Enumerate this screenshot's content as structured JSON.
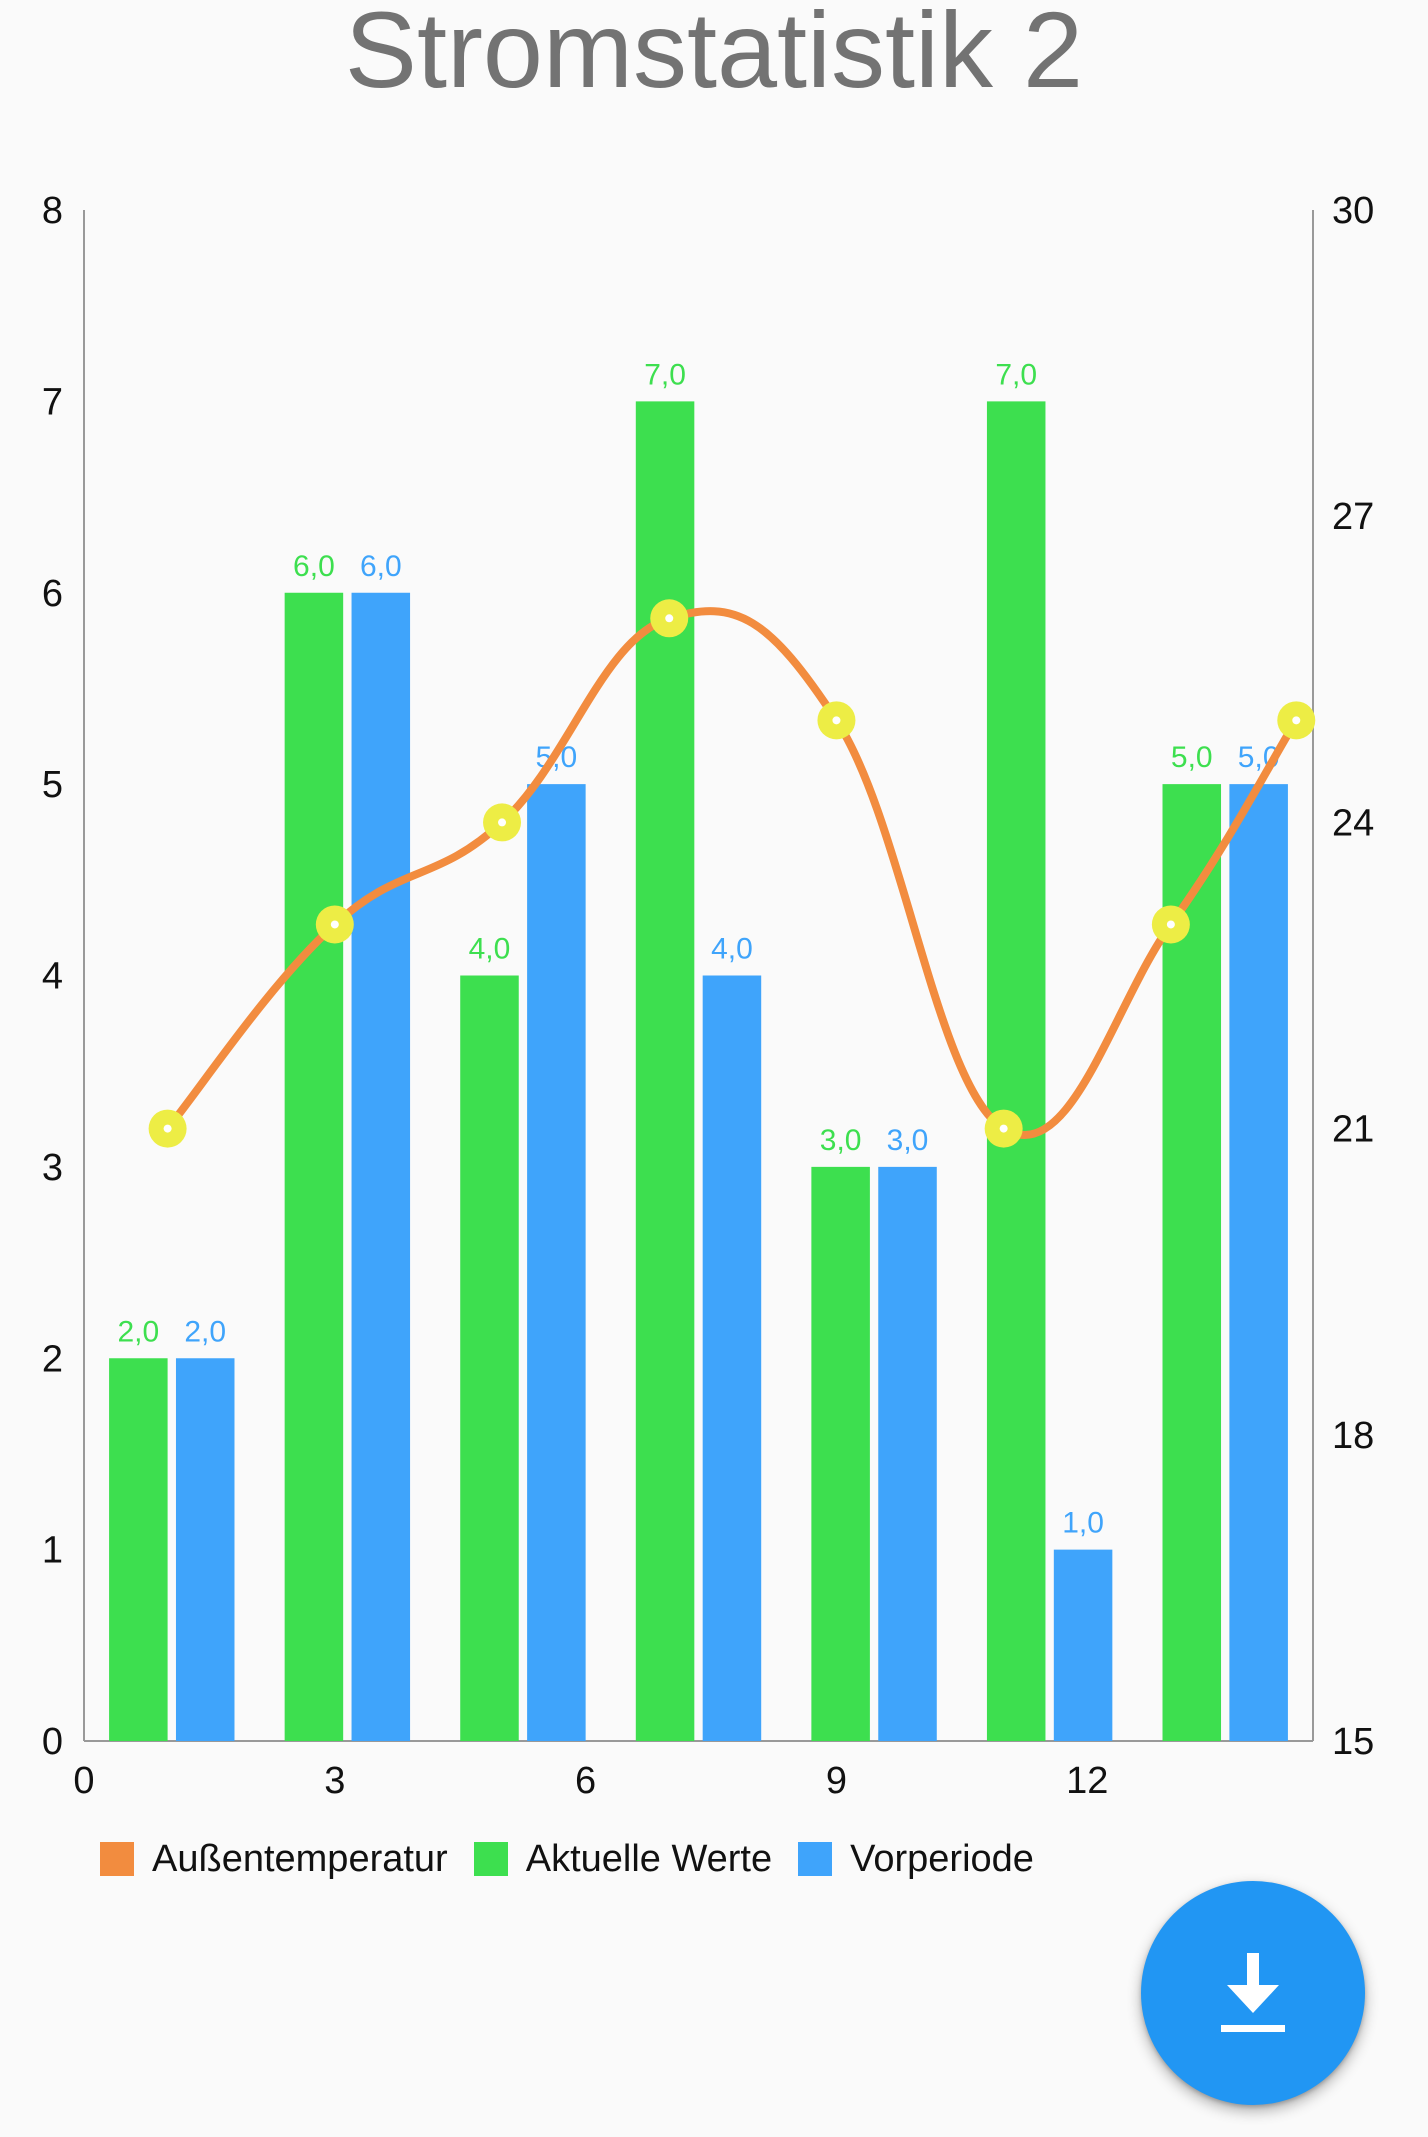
{
  "title": "Stromstatistik 2",
  "colors": {
    "green": "#3ddf4f",
    "blue": "#3fa4fb",
    "orange": "#f28c3f",
    "marker": "#eded45",
    "axis": "#999999",
    "fab": "#2196f3"
  },
  "fab": {
    "icon": "download-icon"
  },
  "chart_data": {
    "type": "bar",
    "title": "Stromstatistik 2",
    "xlabel": "",
    "ylabel": "",
    "xlim": [
      0,
      14.7
    ],
    "ylim": [
      0,
      8
    ],
    "y2lim": [
      15,
      30
    ],
    "x_ticks": [
      "0",
      "3",
      "6",
      "9",
      "12"
    ],
    "y_ticks": [
      "0",
      "1",
      "2",
      "3",
      "4",
      "5",
      "6",
      "7",
      "8"
    ],
    "y2_ticks": [
      "15",
      "18",
      "21",
      "24",
      "27",
      "30"
    ],
    "grid": false,
    "legend_position": "bottom-left",
    "bar_series": [
      {
        "name": "Aktuelle Werte",
        "color": "#3ddf4f",
        "x": [
          0.65,
          2.75,
          4.85,
          6.95,
          9.05,
          11.15,
          13.25
        ],
        "values": [
          2,
          6,
          4,
          7,
          3,
          7,
          5
        ],
        "labels": [
          "2,0",
          "6,0",
          "4,0",
          "7,0",
          "3,0",
          "7,0",
          "5,0"
        ]
      },
      {
        "name": "Vorperiode",
        "color": "#3fa4fb",
        "x": [
          1.45,
          3.55,
          5.65,
          7.75,
          9.85,
          11.95,
          14.05
        ],
        "values": [
          2,
          6,
          5,
          4,
          3,
          1,
          5
        ],
        "labels": [
          "2,0",
          "6,0",
          "5,0",
          "4,0",
          "3,0",
          "1,0",
          "5,0"
        ]
      }
    ],
    "line_series": {
      "name": "Außentemperatur",
      "color": "#f28c3f",
      "axis": "right",
      "x": [
        1,
        3,
        5,
        7,
        9,
        11,
        13,
        14.5
      ],
      "values": [
        21,
        23,
        24,
        26,
        25,
        21,
        23,
        25
      ]
    }
  }
}
